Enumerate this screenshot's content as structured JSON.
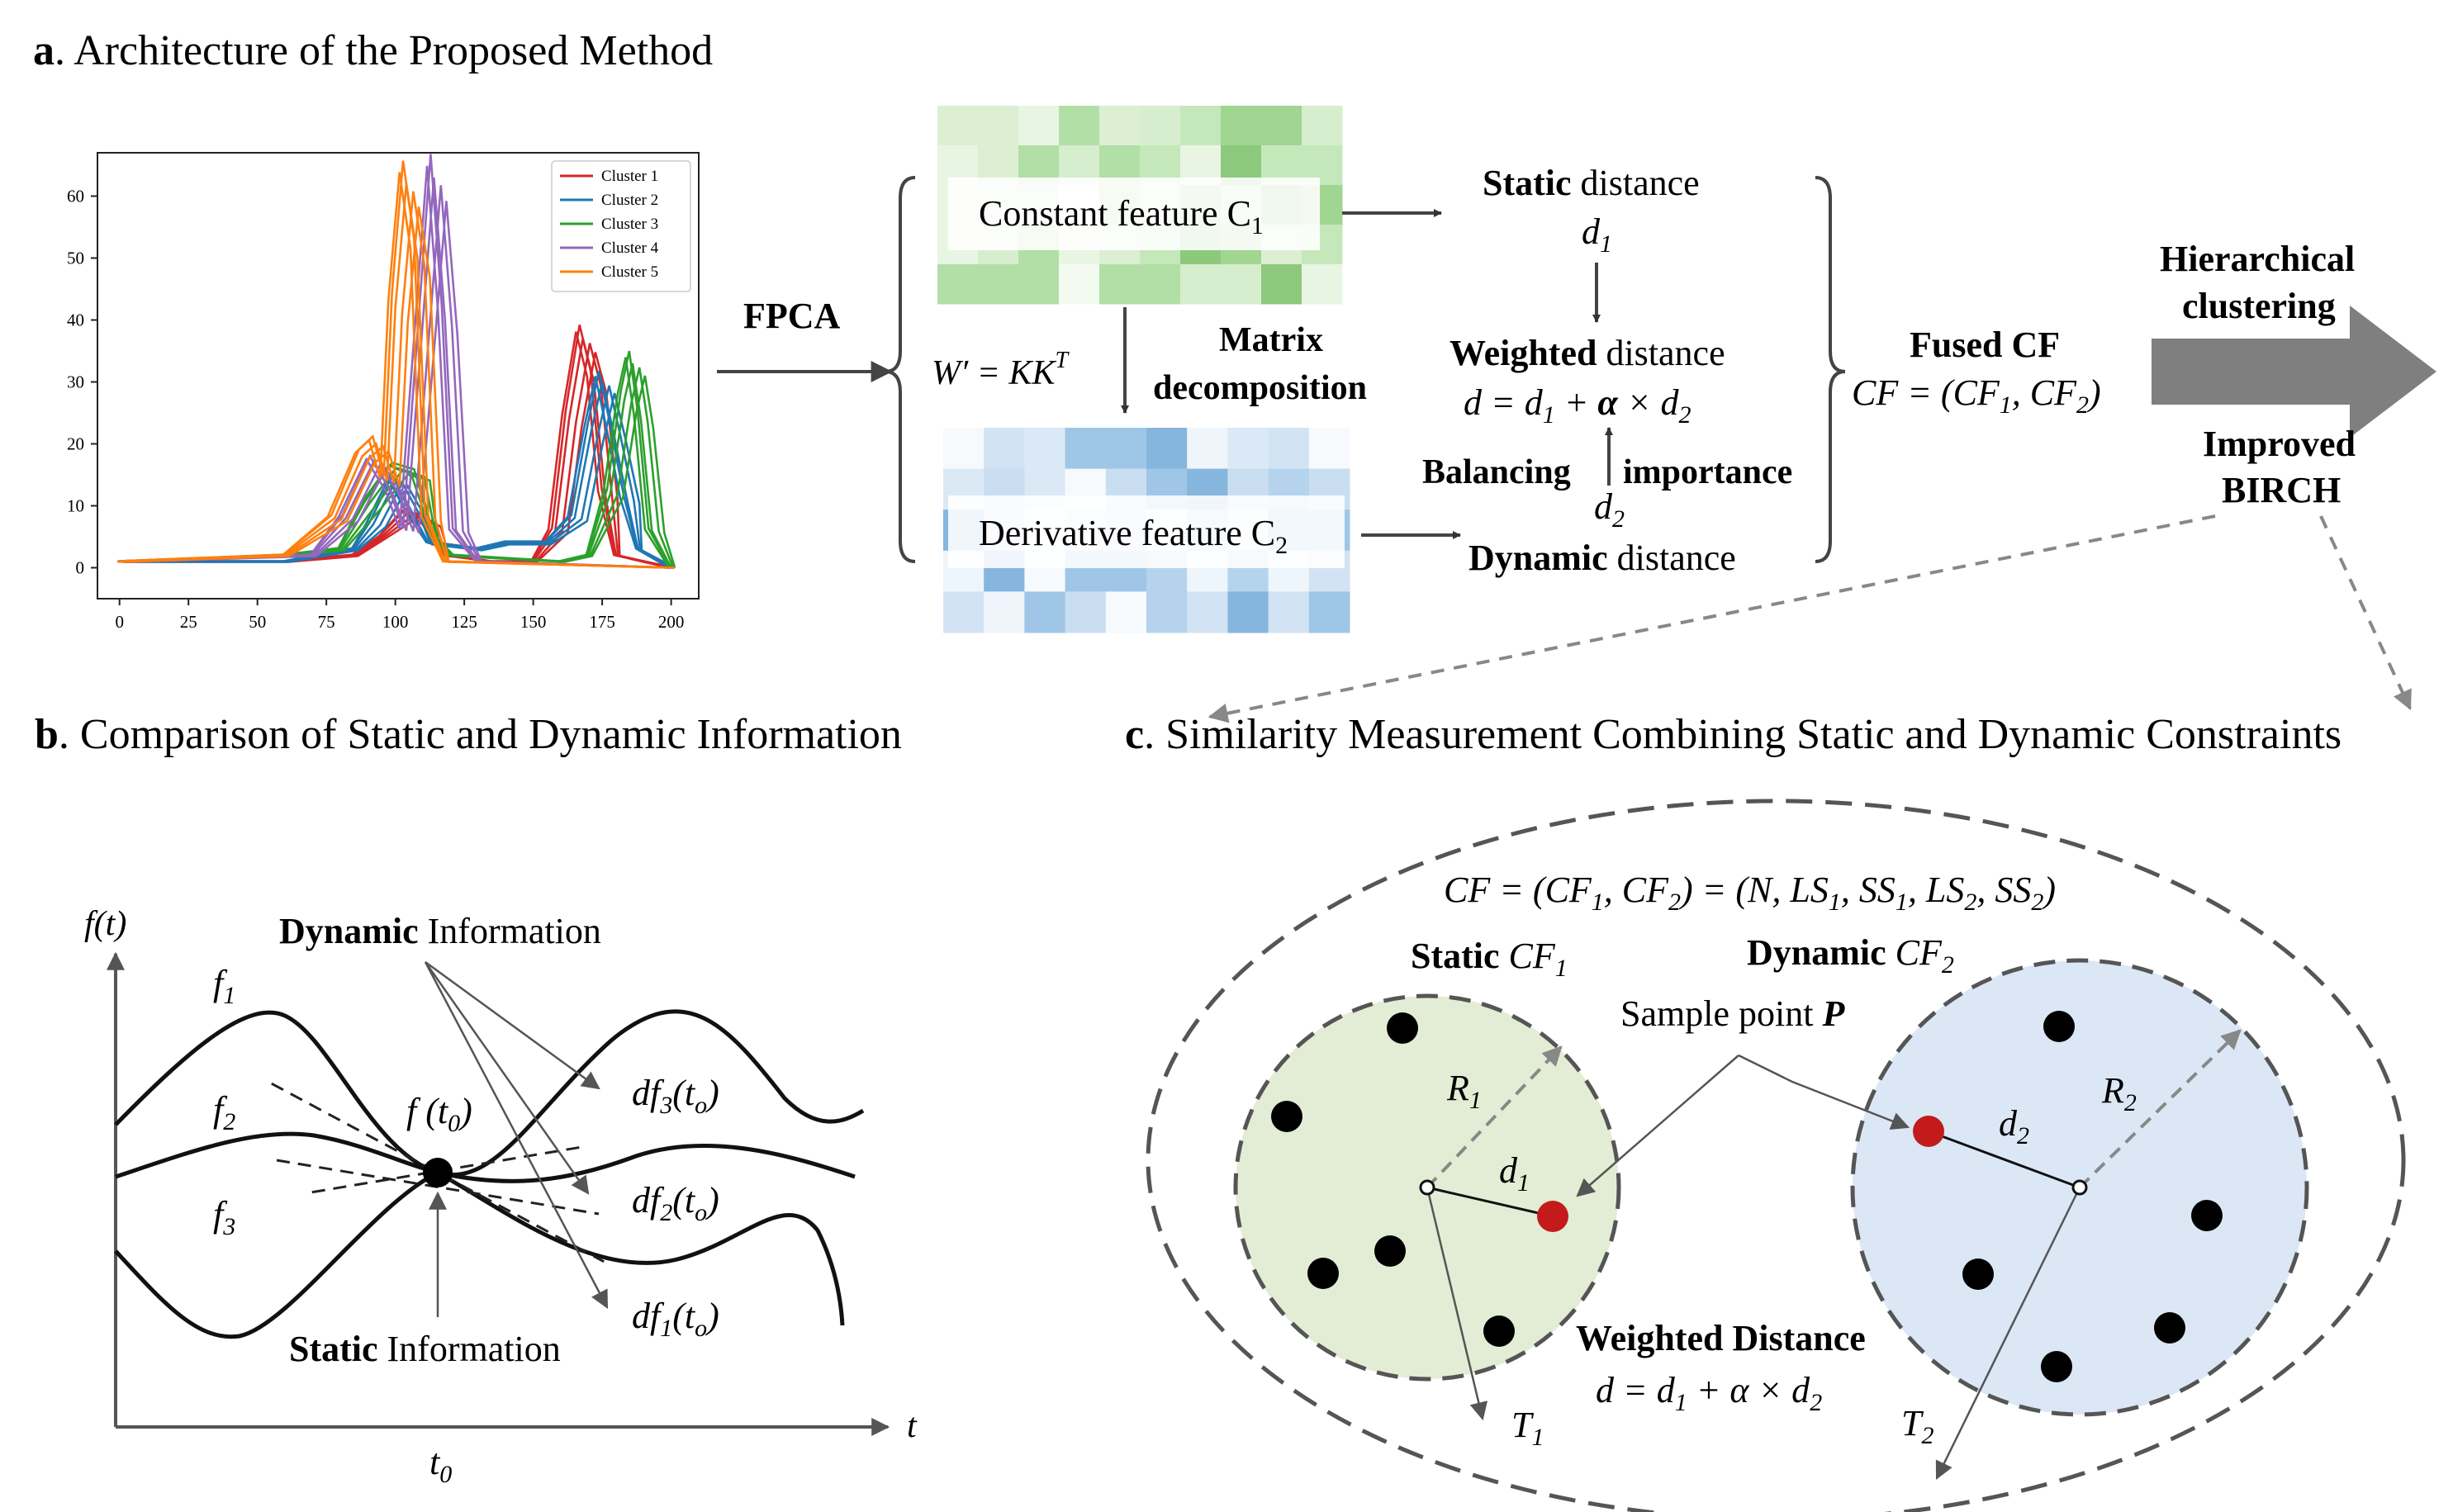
{
  "panel_a": {
    "letter": "a",
    "title": ". Architecture of the Proposed Method",
    "fpca": "FPCA",
    "constant_feature": "Constant feature C",
    "constant_sub": "1",
    "derivative_feature": "Derivative feature C",
    "derivative_sub": "2",
    "w_formula_lhs": "W′ = KK",
    "w_formula_sup": "T",
    "matrix_decomp_1": "Matrix",
    "matrix_decomp_2": "decomposition",
    "static_bold": "Static",
    "static_rest": " distance",
    "d1": "d",
    "weighted_bold": "Weighted",
    "weighted_rest": " distance",
    "weighted_formula_a": "d = d",
    "weighted_formula_b": " + ",
    "weighted_formula_alpha": "α",
    "weighted_formula_c": " × d",
    "balancing": "Balancing",
    "importance": "importance",
    "d2": "d",
    "dynamic_bold": "Dynamic",
    "dynamic_rest": " distance",
    "fused_cf": "Fused CF",
    "cf_formula_a": "CF = (CF",
    "cf_formula_b": ", CF",
    "cf_formula_c": ")",
    "hier_1": "Hierarchical",
    "hier_2": "clustering",
    "birch_1": "Improved",
    "birch_2": "BIRCH",
    "sub1": "1",
    "sub2": "2"
  },
  "panel_b": {
    "letter": "b",
    "title": ". Comparison of Static and Dynamic Information",
    "y_axis": "f(t)",
    "x_axis": "t",
    "t0": "t",
    "t0_sub": "0",
    "f": "f",
    "dynamic_bold": "Dynamic",
    "dynamic_rest": " Information",
    "static_bold": "Static",
    "static_rest": " Information",
    "f_t0_a": "f (t",
    "f_t0_sub": "0",
    "f_t0_b": ")",
    "df": "df",
    "df_arg_a": "(t",
    "df_arg_sub": "o",
    "df_arg_b": ")",
    "n1": "1",
    "n2": "2",
    "n3": "3"
  },
  "panel_c": {
    "letter": "c",
    "title": ". Similarity Measurement Combining Static and Dynamic Constraints",
    "cf_full_a": "CF = (CF",
    "cf_full_b": ", CF",
    "cf_full_c": ") = (N, LS",
    "cf_full_d": ", SS",
    "cf_full_e": ", LS",
    "cf_full_f": ", SS",
    "cf_full_g": ")",
    "static_bold": "Static",
    "static_cf": " CF",
    "dynamic_bold": "Dynamic",
    "dynamic_cf": " CF",
    "sample_point": "Sample point ",
    "sample_P": "P",
    "R": "R",
    "T": "T",
    "d": "d",
    "weighted_bold": "Weighted Distance",
    "weighted_formula_a": "d = d",
    "weighted_formula_b": " + α × d",
    "sub1": "1",
    "sub2": "2",
    "colors": {
      "static_fill": "#e3edd5",
      "dynamic_fill": "#dce7f5",
      "sample": "#c31b1b"
    }
  },
  "chart_data": {
    "type": "line",
    "x_ticks": [
      "0",
      "25",
      "50",
      "75",
      "100",
      "125",
      "150",
      "175",
      "200"
    ],
    "y_ticks": [
      "0",
      "10",
      "20",
      "30",
      "40",
      "50",
      "60"
    ],
    "xlim": [
      -8,
      210
    ],
    "ylim": [
      -5,
      67
    ],
    "grid": false,
    "legend_position": "top-right",
    "series": [
      {
        "name": "Cluster 1",
        "color": "#d62728",
        "values": [
          [
            0,
            1
          ],
          [
            60,
            1
          ],
          [
            85,
            2
          ],
          [
            95,
            5
          ],
          [
            105,
            9
          ],
          [
            112,
            7
          ],
          [
            118,
            2
          ],
          [
            135,
            1
          ],
          [
            150,
            1
          ],
          [
            158,
            6
          ],
          [
            163,
            24
          ],
          [
            168,
            37
          ],
          [
            172,
            30
          ],
          [
            176,
            12
          ],
          [
            180,
            2
          ],
          [
            190,
            1
          ],
          [
            200,
            0
          ]
        ]
      },
      {
        "name": "Cluster 2",
        "color": "#1f77b4",
        "values": [
          [
            0,
            1
          ],
          [
            60,
            1
          ],
          [
            85,
            3
          ],
          [
            92,
            7
          ],
          [
            100,
            14
          ],
          [
            106,
            9
          ],
          [
            112,
            4
          ],
          [
            130,
            3
          ],
          [
            140,
            4
          ],
          [
            155,
            4
          ],
          [
            165,
            8
          ],
          [
            171,
            22
          ],
          [
            175,
            30
          ],
          [
            179,
            22
          ],
          [
            184,
            11
          ],
          [
            188,
            3
          ],
          [
            200,
            0
          ]
        ]
      },
      {
        "name": "Cluster 3",
        "color": "#2ca02c",
        "values": [
          [
            0,
            1
          ],
          [
            60,
            2
          ],
          [
            80,
            3
          ],
          [
            90,
            10
          ],
          [
            100,
            16
          ],
          [
            108,
            15
          ],
          [
            114,
            5
          ],
          [
            120,
            2
          ],
          [
            160,
            1
          ],
          [
            170,
            2
          ],
          [
            178,
            12
          ],
          [
            183,
            27
          ],
          [
            186,
            33
          ],
          [
            189,
            24
          ],
          [
            193,
            6
          ],
          [
            200,
            0
          ]
        ]
      },
      {
        "name": "Cluster 4",
        "color": "#9467bd",
        "values": [
          [
            0,
            1
          ],
          [
            70,
            2
          ],
          [
            82,
            8
          ],
          [
            92,
            17
          ],
          [
            99,
            12
          ],
          [
            104,
            6
          ],
          [
            110,
            40
          ],
          [
            114,
            63
          ],
          [
            118,
            40
          ],
          [
            122,
            6
          ],
          [
            130,
            1
          ],
          [
            200,
            0
          ]
        ]
      },
      {
        "name": "Cluster 5",
        "color": "#ff7f0e",
        "values": [
          [
            0,
            1
          ],
          [
            60,
            2
          ],
          [
            78,
            8
          ],
          [
            88,
            18
          ],
          [
            93,
            20
          ],
          [
            97,
            14
          ],
          [
            100,
            42
          ],
          [
            104,
            62
          ],
          [
            108,
            50
          ],
          [
            112,
            8
          ],
          [
            118,
            1
          ],
          [
            200,
            0
          ]
        ]
      }
    ]
  }
}
